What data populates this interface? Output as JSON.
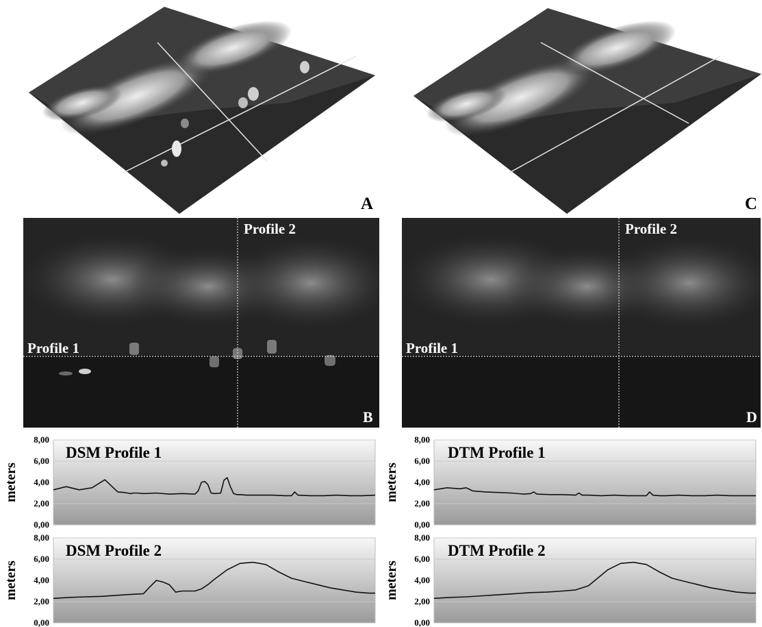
{
  "panels": [
    {
      "letter": "A",
      "profile1_label": "",
      "profile2_label": ""
    },
    {
      "letter": "C"
    }
  ],
  "maps": [
    {
      "letter": "B",
      "profile1_label": "Profile 1",
      "profile2_label": "Profile 2"
    },
    {
      "letter": "D",
      "profile1_label": "Profile 1",
      "profile2_label": "Profile 2"
    }
  ],
  "colors": {
    "profile_line": "#111111",
    "chart_fill_top": "#f7f7f7",
    "chart_fill_bottom": "#9a9a9a"
  },
  "chart_data": [
    {
      "type": "line",
      "title": "DSM Profile 1",
      "ylabel": "meters",
      "yticks": [
        "8,00",
        "6,00",
        "4,00",
        "2,00",
        "0,00"
      ],
      "ylim": [
        0,
        8
      ],
      "grid": true,
      "x": [
        0,
        4,
        8,
        10,
        12,
        16,
        20,
        22,
        23,
        24,
        25,
        26,
        28,
        32,
        36,
        40,
        44,
        45,
        46,
        47,
        48,
        49,
        50,
        52,
        53,
        54,
        55,
        56,
        57,
        58,
        60,
        64,
        68,
        72,
        74,
        75,
        76,
        80,
        84,
        88,
        92,
        96,
        100
      ],
      "series": [
        {
          "values": [
            3.3,
            3.6,
            3.3,
            3.4,
            3.5,
            4.25,
            3.1,
            3.05,
            3.0,
            2.95,
            3.0,
            3.0,
            2.95,
            3.0,
            2.9,
            2.95,
            2.9,
            3.2,
            4.0,
            4.1,
            3.8,
            3.0,
            2.95,
            3.0,
            4.2,
            4.45,
            3.6,
            2.95,
            2.85,
            2.85,
            2.8,
            2.8,
            2.8,
            2.75,
            2.75,
            3.1,
            2.8,
            2.75,
            2.75,
            2.8,
            2.75,
            2.75,
            2.8
          ]
        }
      ]
    },
    {
      "type": "line",
      "title": "DTM Profile 1",
      "ylabel": "meters",
      "yticks": [
        "8,00",
        "6,00",
        "4,00",
        "2,00",
        "0,00"
      ],
      "ylim": [
        0,
        8
      ],
      "grid": true,
      "x": [
        0,
        4,
        8,
        10,
        12,
        16,
        20,
        24,
        28,
        30,
        31,
        32,
        36,
        40,
        44,
        45,
        46,
        48,
        52,
        56,
        60,
        64,
        66,
        67,
        68,
        70,
        72,
        76,
        80,
        84,
        88,
        92,
        96,
        100
      ],
      "series": [
        {
          "values": [
            3.3,
            3.5,
            3.4,
            3.5,
            3.2,
            3.1,
            3.05,
            3.0,
            2.9,
            2.95,
            3.1,
            2.9,
            2.85,
            2.85,
            2.8,
            3.0,
            2.8,
            2.8,
            2.75,
            2.8,
            2.75,
            2.75,
            2.75,
            3.1,
            2.8,
            2.75,
            2.75,
            2.8,
            2.75,
            2.75,
            2.8,
            2.75,
            2.75,
            2.75
          ]
        }
      ]
    },
    {
      "type": "line",
      "title": "DSM Profile 2",
      "ylabel": "meters",
      "yticks": [
        "8,00",
        "6,00",
        "4,00",
        "2,00",
        "0,00"
      ],
      "ylim": [
        0,
        8
      ],
      "grid": true,
      "x": [
        0,
        5,
        10,
        15,
        20,
        25,
        28,
        30,
        32,
        34,
        36,
        38,
        40,
        42,
        44,
        46,
        48,
        50,
        54,
        58,
        62,
        66,
        70,
        74,
        78,
        82,
        86,
        90,
        94,
        98,
        100
      ],
      "series": [
        {
          "values": [
            2.3,
            2.4,
            2.45,
            2.5,
            2.6,
            2.7,
            2.75,
            3.4,
            4.0,
            3.85,
            3.6,
            2.9,
            3.0,
            3.0,
            3.0,
            3.2,
            3.6,
            4.1,
            5.0,
            5.6,
            5.7,
            5.5,
            4.8,
            4.2,
            3.9,
            3.6,
            3.3,
            3.1,
            2.9,
            2.8,
            2.8
          ]
        }
      ]
    },
    {
      "type": "line",
      "title": "DTM Profile 2",
      "ylabel": "meters",
      "yticks": [
        "8,00",
        "6,00",
        "4,00",
        "2,00",
        "0,00"
      ],
      "ylim": [
        0,
        8
      ],
      "grid": true,
      "x": [
        0,
        5,
        10,
        15,
        20,
        25,
        30,
        35,
        40,
        44,
        48,
        50,
        54,
        58,
        62,
        66,
        70,
        74,
        78,
        82,
        86,
        90,
        94,
        98,
        100
      ],
      "series": [
        {
          "values": [
            2.3,
            2.4,
            2.45,
            2.55,
            2.65,
            2.75,
            2.85,
            2.9,
            3.0,
            3.1,
            3.5,
            4.0,
            5.0,
            5.6,
            5.7,
            5.5,
            4.8,
            4.2,
            3.9,
            3.6,
            3.3,
            3.1,
            2.9,
            2.8,
            2.8
          ]
        }
      ]
    }
  ]
}
